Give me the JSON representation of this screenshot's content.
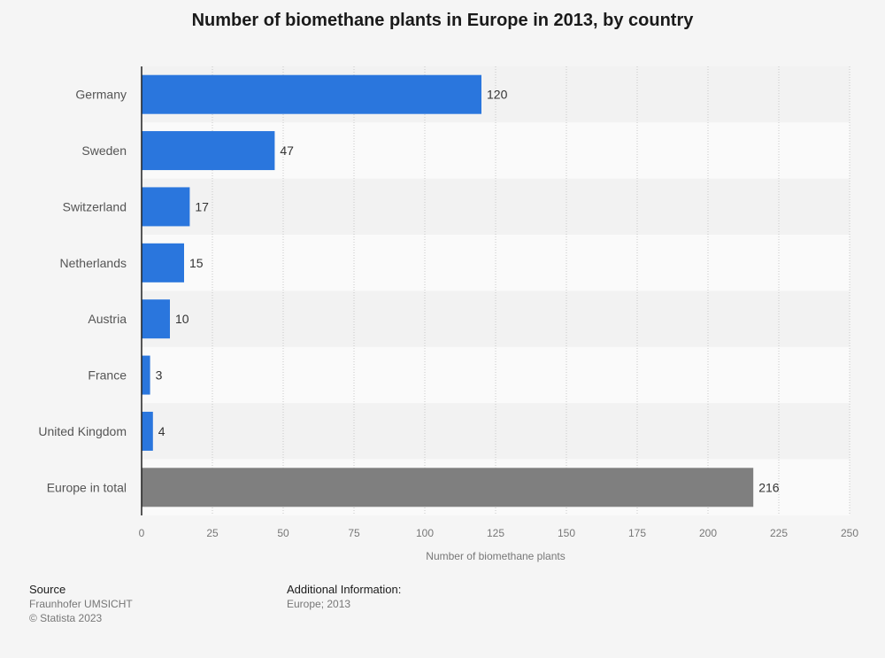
{
  "chart_data": {
    "type": "bar",
    "orientation": "horizontal",
    "title": "Number of biomethane plants in Europe in 2013, by country",
    "categories": [
      "Germany",
      "Sweden",
      "Switzerland",
      "Netherlands",
      "Austria",
      "France",
      "United Kingdom",
      "Europe in total"
    ],
    "values": [
      120,
      47,
      17,
      15,
      10,
      3,
      4,
      216
    ],
    "bar_colors": [
      "#2a76dd",
      "#2a76dd",
      "#2a76dd",
      "#2a76dd",
      "#2a76dd",
      "#2a76dd",
      "#2a76dd",
      "#7f7f7f"
    ],
    "xlabel": "Number of biomethane plants",
    "ylabel": "",
    "xlim": [
      0,
      250
    ],
    "xticks": [
      0,
      25,
      50,
      75,
      100,
      125,
      150,
      175,
      200,
      225,
      250
    ],
    "grid": true,
    "data_labels": true
  },
  "footer": {
    "source_heading": "Source",
    "source_line1": "Fraunhofer UMSICHT",
    "source_line2": "© Statista 2023",
    "info_heading": "Additional Information:",
    "info_text": "Europe; 2013"
  }
}
